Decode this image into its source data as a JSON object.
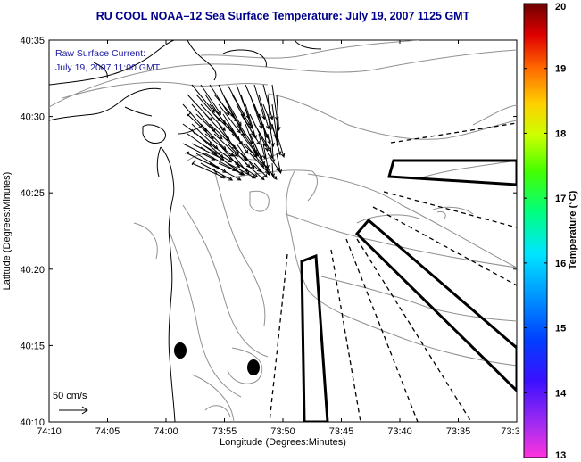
{
  "title": "RU COOL  NOAA–12  Sea Surface Temperature:  July 19, 2007 1125 GMT",
  "legend": {
    "line1": "Raw Surface Current:",
    "line2": "July 19, 2007 11:00 GMT"
  },
  "scale_label": "50 cm/s",
  "xaxis": {
    "label": "Longitude (Degrees:Minutes)",
    "ticks": [
      "74:10",
      "74:05",
      "74:00",
      "73:55",
      "73:50",
      "73:45",
      "73:40",
      "73:35",
      "73:3"
    ]
  },
  "yaxis": {
    "label": "Latitude (Degrees:Minutes)",
    "ticks": [
      "40:35",
      "40:30",
      "40:25",
      "40:20",
      "40:15",
      "40:10"
    ]
  },
  "colorbar": {
    "label": "Temperature (°C)",
    "ticks": [
      "20",
      "19",
      "18",
      "17",
      "16",
      "15",
      "14",
      "13"
    ]
  },
  "chart_data": {
    "type": "map",
    "title": "RU COOL  NOAA–12  Sea Surface Temperature:  July 19, 2007 1125 GMT",
    "xlabel": "Longitude (Degrees:Minutes)",
    "ylabel": "Latitude (Degrees:Minutes)",
    "xlim": [
      "74:10",
      "73:3"
    ],
    "ylim": [
      "40:10",
      "40:35"
    ],
    "colorbar_range": [
      13,
      20
    ],
    "colorbar_label": "Temperature (°C)",
    "current_scale": "50 cm/s",
    "grid": false
  },
  "colors": {
    "title": "#00008b",
    "legend": "#1a1aa0",
    "contour": "#909090",
    "coast": "#000000",
    "colormap": [
      "#ff33dd",
      "#7a2cff",
      "#0000ff",
      "#0099ff",
      "#00e6ff",
      "#00ff66",
      "#aaff00",
      "#ffff00",
      "#ffaa00",
      "#ff3300",
      "#cc0000",
      "#660000"
    ]
  }
}
